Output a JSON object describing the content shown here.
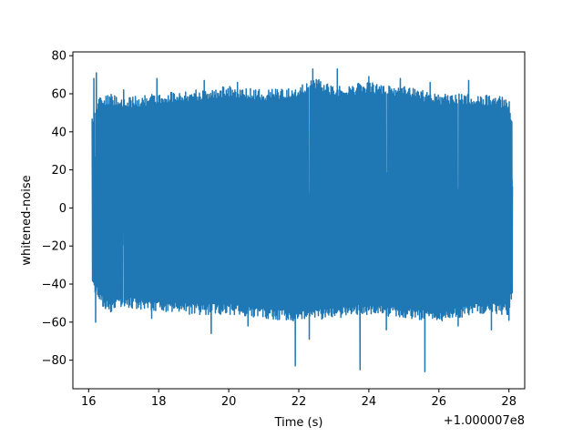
{
  "chart_data": {
    "type": "line",
    "title": "",
    "xlabel": "Time (s)",
    "ylabel": "whitened-noise",
    "x_offset_label": "+1.000007e8",
    "xlim": [
      15.55,
      28.45
    ],
    "ylim": [
      -95,
      82
    ],
    "xticks": [
      16,
      18,
      20,
      22,
      24,
      26,
      28
    ],
    "xtick_labels": [
      "16",
      "18",
      "20",
      "22",
      "24",
      "26",
      "28"
    ],
    "yticks": [
      -80,
      -60,
      -40,
      -20,
      0,
      20,
      40,
      60,
      80
    ],
    "ytick_labels": [
      "−80",
      "−60",
      "−40",
      "−20",
      "0",
      "20",
      "40",
      "60",
      "80"
    ],
    "grid": false,
    "color": "#1f77b4",
    "x_range": [
      16.1,
      28.1
    ],
    "series": [
      {
        "envelope_top": [
          [
            16.1,
            48
          ],
          [
            16.3,
            58
          ],
          [
            16.6,
            60
          ],
          [
            17.0,
            58
          ],
          [
            18.0,
            60
          ],
          [
            19.0,
            62
          ],
          [
            20.0,
            64
          ],
          [
            21.0,
            62
          ],
          [
            22.0,
            64
          ],
          [
            22.5,
            68
          ],
          [
            23.0,
            64
          ],
          [
            24.0,
            66
          ],
          [
            25.0,
            64
          ],
          [
            26.0,
            60
          ],
          [
            27.0,
            60
          ],
          [
            28.0,
            58
          ],
          [
            28.1,
            46
          ]
        ],
        "envelope_bottom": [
          [
            16.1,
            -40
          ],
          [
            16.3,
            -50
          ],
          [
            16.6,
            -55
          ],
          [
            17.0,
            -52
          ],
          [
            18.0,
            -55
          ],
          [
            19.0,
            -56
          ],
          [
            20.0,
            -56
          ],
          [
            21.0,
            -58
          ],
          [
            22.0,
            -60
          ],
          [
            23.0,
            -58
          ],
          [
            24.0,
            -56
          ],
          [
            25.0,
            -58
          ],
          [
            26.0,
            -60
          ],
          [
            27.0,
            -56
          ],
          [
            28.0,
            -56
          ],
          [
            28.1,
            -44
          ]
        ],
        "peaks": [
          [
            16.15,
            68
          ],
          [
            16.22,
            71
          ],
          [
            17.0,
            62
          ],
          [
            17.95,
            68
          ],
          [
            19.3,
            67
          ],
          [
            20.25,
            66
          ],
          [
            21.9,
            69
          ],
          [
            22.4,
            73
          ],
          [
            23.1,
            73
          ],
          [
            24.0,
            69
          ],
          [
            24.9,
            68
          ],
          [
            25.75,
            66
          ],
          [
            26.85,
            67
          ],
          [
            28.0,
            61
          ]
        ],
        "troughs": [
          [
            16.2,
            -60
          ],
          [
            17.8,
            -58
          ],
          [
            19.5,
            -66
          ],
          [
            20.55,
            -62
          ],
          [
            21.9,
            -83
          ],
          [
            22.3,
            -69
          ],
          [
            23.75,
            -85
          ],
          [
            24.5,
            -64
          ],
          [
            25.6,
            -86
          ],
          [
            26.55,
            -62
          ],
          [
            27.5,
            -64
          ],
          [
            28.0,
            -59
          ]
        ]
      }
    ]
  }
}
